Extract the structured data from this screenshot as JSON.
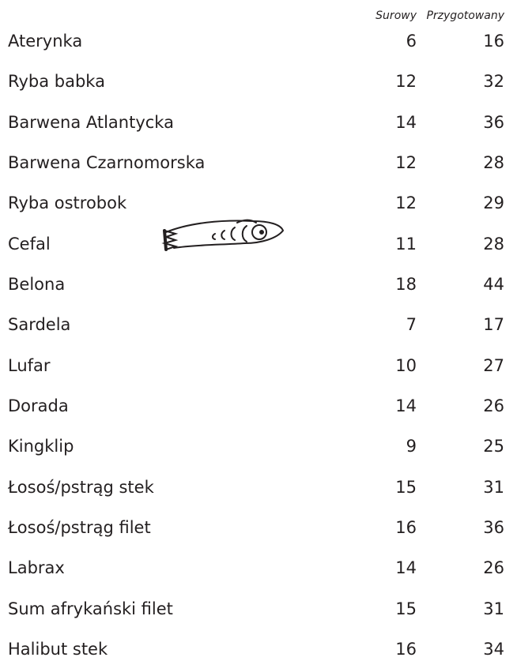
{
  "table": {
    "headers": [
      "Surowy",
      "Przygotowany"
    ],
    "rows": [
      [
        "Aterynka",
        6,
        16
      ],
      [
        "Ryba babka",
        12,
        32
      ],
      [
        "Barwena Atlantycka",
        14,
        36
      ],
      [
        "Barwena Czarnomorska",
        12,
        28
      ],
      [
        "Ryba ostrobok",
        12,
        29
      ],
      [
        "Cefal",
        11,
        28
      ],
      [
        "Belona",
        18,
        44
      ],
      [
        "Sardela",
        7,
        17
      ],
      [
        "Lufar",
        10,
        27
      ],
      [
        "Dorada",
        14,
        26
      ],
      [
        "Kingklip",
        9,
        25
      ],
      [
        "Łosoś/pstrąg stek",
        15,
        31
      ],
      [
        "Łosoś/pstrąg filet",
        16,
        36
      ],
      [
        "Labrax",
        14,
        26
      ],
      [
        "Sum afrykański filet",
        15,
        31
      ],
      [
        "Halibut stek",
        16,
        34
      ]
    ]
  }
}
